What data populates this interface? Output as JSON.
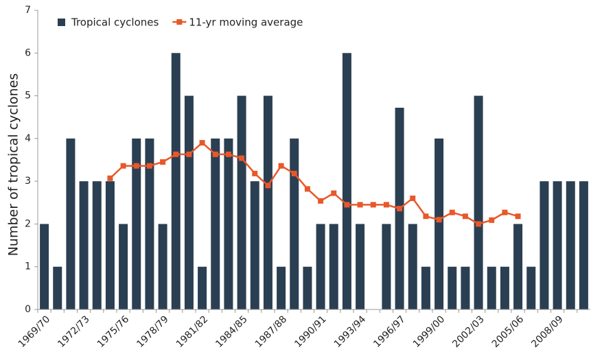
{
  "chart_data": {
    "type": "bar",
    "y_label": "Number of tropical cyclones",
    "categories": [
      "1969/70",
      null,
      null,
      "1972/73",
      null,
      null,
      "1975/76",
      null,
      null,
      "1978/79",
      null,
      null,
      "1981/82",
      null,
      null,
      "1984/85",
      null,
      null,
      "1987/88",
      null,
      null,
      "1990/91",
      null,
      null,
      "1993/94",
      null,
      null,
      "1996/97",
      null,
      null,
      "1999/00",
      null,
      null,
      "2002/03",
      null,
      null,
      "2005/06",
      null,
      null,
      "2008/09",
      null,
      null
    ],
    "series": [
      {
        "name": "Tropical cyclones",
        "type": "bar",
        "color": "#2b3f52",
        "values": [
          2,
          1,
          4,
          3,
          3,
          3,
          2,
          4,
          4,
          2,
          6,
          5,
          1,
          4,
          4,
          5,
          3,
          5,
          1,
          4,
          1,
          2,
          2,
          6,
          2,
          0,
          2,
          4.72,
          2,
          1,
          4,
          1,
          1,
          5,
          1,
          1,
          2,
          1,
          3,
          3,
          3,
          3
        ]
      },
      {
        "name": "11-yr moving average",
        "type": "line",
        "color": "#e8582a",
        "values": [
          null,
          null,
          null,
          null,
          null,
          3.07,
          3.36,
          3.36,
          3.36,
          3.45,
          3.63,
          3.63,
          3.9,
          3.63,
          3.63,
          3.54,
          3.18,
          2.9,
          3.36,
          3.18,
          2.82,
          2.54,
          2.72,
          2.45,
          2.45,
          2.45,
          2.45,
          2.36,
          2.6,
          2.18,
          2.1,
          2.27,
          2.18,
          2.0,
          2.09,
          2.27,
          2.18,
          null,
          null,
          null,
          null,
          null
        ]
      }
    ],
    "ylim": [
      0,
      7
    ],
    "yticks": [
      0,
      1,
      2,
      3,
      4,
      5,
      6,
      7
    ],
    "legend": "top-left"
  }
}
